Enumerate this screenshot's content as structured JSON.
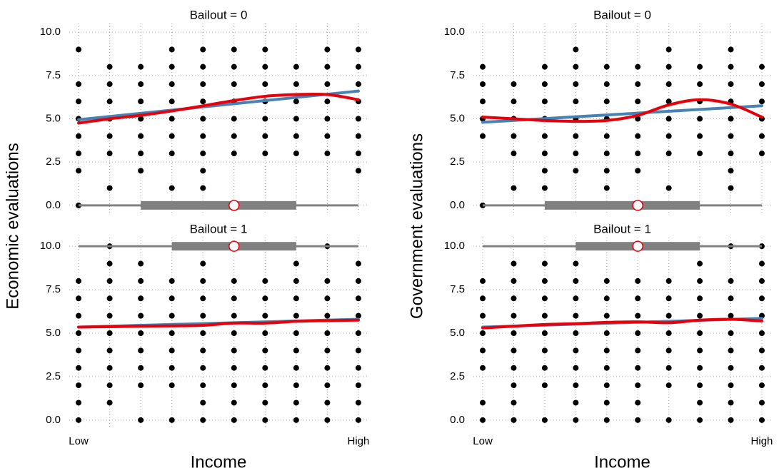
{
  "chart_data": [
    {
      "type": "scatter",
      "title": "Bailout = 0",
      "ylabel": "Economic evaluations",
      "xlim": [
        0.7,
        10.3
      ],
      "ylim": [
        -0.5,
        10.5
      ],
      "xticks": [
        1,
        2,
        3,
        4,
        5,
        6,
        7,
        8,
        9,
        10
      ],
      "yticks": [
        {
          "value": 0,
          "label": "0.0"
        },
        {
          "value": 2.5,
          "label": "2.5"
        },
        {
          "value": 5,
          "label": "5.0"
        },
        {
          "value": 7.5,
          "label": "7.5"
        },
        {
          "value": 10,
          "label": "10.0"
        }
      ],
      "grid": true,
      "point_color": "#000000",
      "points": [
        {
          "y": 9,
          "x": [
            1,
            4,
            5,
            6,
            7,
            9,
            10
          ]
        },
        {
          "y": 8,
          "x": [
            2,
            3,
            4,
            5,
            6,
            7,
            8,
            9,
            10
          ]
        },
        {
          "y": 7,
          "x": [
            1,
            2,
            3,
            4,
            5,
            6,
            7,
            8,
            9,
            10
          ]
        },
        {
          "y": 6,
          "x": [
            1,
            2,
            3,
            4,
            5,
            6,
            7,
            8,
            9,
            10
          ]
        },
        {
          "y": 5,
          "x": [
            1,
            2,
            3,
            4,
            5,
            6,
            7,
            8,
            9,
            10
          ]
        },
        {
          "y": 4,
          "x": [
            1,
            2,
            3,
            4,
            5,
            6,
            7,
            8,
            9,
            10
          ]
        },
        {
          "y": 3,
          "x": [
            1,
            2,
            3,
            4,
            5,
            6,
            7,
            8,
            9,
            10
          ]
        },
        {
          "y": 2,
          "x": [
            1,
            3,
            5,
            10
          ]
        },
        {
          "y": 1,
          "x": [
            2,
            4,
            5
          ]
        },
        {
          "y": 0,
          "x": [
            1
          ]
        }
      ],
      "series": [
        {
          "color": "#4682b4",
          "x": [
            1,
            10
          ],
          "values": [
            4.95,
            6.6
          ]
        },
        {
          "color": "#e8000b",
          "x": [
            1,
            2,
            3,
            4,
            5,
            6,
            7,
            8,
            9,
            10
          ],
          "values": [
            4.75,
            5.0,
            5.2,
            5.45,
            5.75,
            6.05,
            6.3,
            6.4,
            6.4,
            6.1
          ]
        }
      ],
      "income_summary": {
        "min": 1,
        "q1": 3,
        "median": 6,
        "q3": 8,
        "max": 10,
        "side": "bottom"
      }
    },
    {
      "type": "scatter",
      "title": "Bailout = 1",
      "xlabel": "Income",
      "xlim": [
        0.7,
        10.3
      ],
      "ylim": [
        -0.5,
        10.5
      ],
      "xticks": [
        {
          "value": 1,
          "label": "Low"
        },
        {
          "value": 2,
          "label": null
        },
        {
          "value": 3,
          "label": null
        },
        {
          "value": 4,
          "label": null
        },
        {
          "value": 5,
          "label": null
        },
        {
          "value": 6,
          "label": null
        },
        {
          "value": 7,
          "label": null
        },
        {
          "value": 8,
          "label": null
        },
        {
          "value": 9,
          "label": null
        },
        {
          "value": 10,
          "label": "High"
        }
      ],
      "yticks": [
        {
          "value": 0,
          "label": "0.0"
        },
        {
          "value": 2.5,
          "label": "2.5"
        },
        {
          "value": 5,
          "label": "5.0"
        },
        {
          "value": 7.5,
          "label": "7.5"
        },
        {
          "value": 10,
          "label": "10.0"
        }
      ],
      "grid": true,
      "point_color": "#000000",
      "points": [
        {
          "y": 10,
          "x": [
            2,
            9
          ]
        },
        {
          "y": 9,
          "x": [
            2,
            3,
            5,
            8,
            10
          ]
        },
        {
          "y": 8,
          "x": [
            1,
            2,
            3,
            4,
            5,
            6,
            7,
            8,
            9,
            10
          ]
        },
        {
          "y": 7,
          "x": [
            1,
            2,
            3,
            4,
            5,
            6,
            7,
            8,
            9,
            10
          ]
        },
        {
          "y": 6,
          "x": [
            1,
            2,
            3,
            4,
            5,
            6,
            7,
            8,
            9,
            10
          ]
        },
        {
          "y": 5,
          "x": [
            1,
            2,
            3,
            4,
            5,
            6,
            7,
            8,
            9,
            10
          ]
        },
        {
          "y": 4,
          "x": [
            1,
            2,
            3,
            4,
            5,
            6,
            7,
            8,
            9,
            10
          ]
        },
        {
          "y": 3,
          "x": [
            1,
            2,
            3,
            4,
            5,
            6,
            7,
            8,
            9,
            10
          ]
        },
        {
          "y": 2,
          "x": [
            1,
            2,
            3,
            4,
            5,
            6,
            7,
            8,
            9,
            10
          ]
        },
        {
          "y": 1,
          "x": [
            1,
            2,
            5,
            6,
            7,
            8,
            9,
            10
          ]
        },
        {
          "y": 0,
          "x": [
            1,
            3,
            4,
            5,
            6,
            7,
            8,
            9,
            10
          ]
        }
      ],
      "series": [
        {
          "color": "#4682b4",
          "x": [
            1,
            10
          ],
          "values": [
            5.35,
            5.8
          ]
        },
        {
          "color": "#e8000b",
          "x": [
            1,
            2,
            3,
            4,
            5,
            6,
            7,
            8,
            9,
            10
          ],
          "values": [
            5.35,
            5.37,
            5.4,
            5.42,
            5.45,
            5.58,
            5.58,
            5.68,
            5.72,
            5.75
          ]
        }
      ],
      "income_summary": {
        "min": 1,
        "q1": 4,
        "median": 6,
        "q3": 8,
        "max": 10,
        "side": "top"
      }
    },
    {
      "type": "scatter",
      "title": "Bailout = 0",
      "ylabel": "Government evaluations",
      "xlim": [
        0.7,
        10.3
      ],
      "ylim": [
        -0.5,
        10.5
      ],
      "xticks": [
        1,
        2,
        3,
        4,
        5,
        6,
        7,
        8,
        9,
        10
      ],
      "yticks": [
        {
          "value": 0,
          "label": "0.0"
        },
        {
          "value": 2.5,
          "label": "2.5"
        },
        {
          "value": 5,
          "label": "5.0"
        },
        {
          "value": 7.5,
          "label": "7.5"
        },
        {
          "value": 10,
          "label": "10.0"
        }
      ],
      "grid": true,
      "point_color": "#000000",
      "points": [
        {
          "y": 9,
          "x": [
            4,
            7,
            9
          ]
        },
        {
          "y": 8,
          "x": [
            1,
            3,
            4,
            5,
            6,
            7,
            8,
            9,
            10
          ]
        },
        {
          "y": 7,
          "x": [
            1,
            2,
            3,
            4,
            5,
            6,
            7,
            8,
            9,
            10
          ]
        },
        {
          "y": 6,
          "x": [
            1,
            2,
            3,
            4,
            5,
            6,
            7,
            8,
            9,
            10
          ]
        },
        {
          "y": 5,
          "x": [
            1,
            2,
            3,
            4,
            5,
            6,
            7,
            8,
            9,
            10
          ]
        },
        {
          "y": 4,
          "x": [
            1,
            2,
            3,
            4,
            5,
            6,
            7,
            8,
            9,
            10
          ]
        },
        {
          "y": 3,
          "x": [
            2,
            3,
            4,
            5,
            6,
            7,
            8,
            9,
            10
          ]
        },
        {
          "y": 2,
          "x": [
            3,
            4,
            5,
            6,
            9
          ]
        },
        {
          "y": 1,
          "x": [
            2,
            3,
            5,
            7,
            9
          ]
        },
        {
          "y": 0,
          "x": [
            1
          ]
        }
      ],
      "series": [
        {
          "color": "#4682b4",
          "x": [
            1,
            10
          ],
          "values": [
            4.8,
            5.75
          ]
        },
        {
          "color": "#e8000b",
          "x": [
            1,
            2,
            3,
            4,
            5,
            6,
            7,
            8,
            9,
            10
          ],
          "values": [
            5.1,
            5.0,
            4.9,
            4.85,
            4.9,
            5.2,
            5.8,
            6.1,
            5.85,
            5.1
          ]
        }
      ],
      "income_summary": {
        "min": 1,
        "q1": 3,
        "median": 6,
        "q3": 8,
        "max": 10,
        "side": "bottom"
      }
    },
    {
      "type": "scatter",
      "title": "Bailout = 1",
      "xlabel": "Income",
      "xlim": [
        0.7,
        10.3
      ],
      "ylim": [
        -0.5,
        10.5
      ],
      "xticks": [
        {
          "value": 1,
          "label": "Low"
        },
        {
          "value": 2,
          "label": null
        },
        {
          "value": 3,
          "label": null
        },
        {
          "value": 4,
          "label": null
        },
        {
          "value": 5,
          "label": null
        },
        {
          "value": 6,
          "label": null
        },
        {
          "value": 7,
          "label": null
        },
        {
          "value": 8,
          "label": null
        },
        {
          "value": 9,
          "label": null
        },
        {
          "value": 10,
          "label": "High"
        }
      ],
      "yticks": [
        {
          "value": 0,
          "label": "0.0"
        },
        {
          "value": 2.5,
          "label": "2.5"
        },
        {
          "value": 5,
          "label": "5.0"
        },
        {
          "value": 7.5,
          "label": "7.5"
        },
        {
          "value": 10,
          "label": "10.0"
        }
      ],
      "grid": true,
      "point_color": "#000000",
      "points": [
        {
          "y": 10,
          "x": [
            9,
            10
          ]
        },
        {
          "y": 9,
          "x": [
            2,
            3,
            4,
            8,
            10
          ]
        },
        {
          "y": 8,
          "x": [
            1,
            2,
            3,
            4,
            5,
            6,
            7,
            8,
            9,
            10
          ]
        },
        {
          "y": 7,
          "x": [
            1,
            2,
            3,
            4,
            5,
            6,
            7,
            8,
            9,
            10
          ]
        },
        {
          "y": 6,
          "x": [
            1,
            2,
            3,
            4,
            5,
            6,
            7,
            8,
            9,
            10
          ]
        },
        {
          "y": 5,
          "x": [
            1,
            2,
            3,
            4,
            5,
            6,
            7,
            8,
            9,
            10
          ]
        },
        {
          "y": 4,
          "x": [
            1,
            2,
            3,
            4,
            5,
            6,
            7,
            8,
            9,
            10
          ]
        },
        {
          "y": 3,
          "x": [
            1,
            2,
            3,
            4,
            5,
            6,
            7,
            8,
            9,
            10
          ]
        },
        {
          "y": 2,
          "x": [
            2,
            3,
            4,
            5,
            6,
            7,
            8,
            9,
            10
          ]
        },
        {
          "y": 1,
          "x": [
            1,
            2,
            4,
            5,
            6,
            8,
            9,
            10
          ]
        },
        {
          "y": 0,
          "x": [
            1,
            2,
            3,
            4,
            5,
            6,
            7,
            8,
            9,
            10
          ]
        }
      ],
      "series": [
        {
          "color": "#4682b4",
          "x": [
            1,
            10
          ],
          "values": [
            5.35,
            5.85
          ]
        },
        {
          "color": "#e8000b",
          "x": [
            1,
            2,
            3,
            4,
            5,
            6,
            7,
            8,
            9,
            10
          ],
          "values": [
            5.3,
            5.4,
            5.5,
            5.55,
            5.62,
            5.65,
            5.6,
            5.75,
            5.8,
            5.7
          ]
        }
      ],
      "income_summary": {
        "min": 1,
        "q1": 4,
        "median": 6,
        "q3": 8,
        "max": 10,
        "side": "top"
      }
    }
  ]
}
